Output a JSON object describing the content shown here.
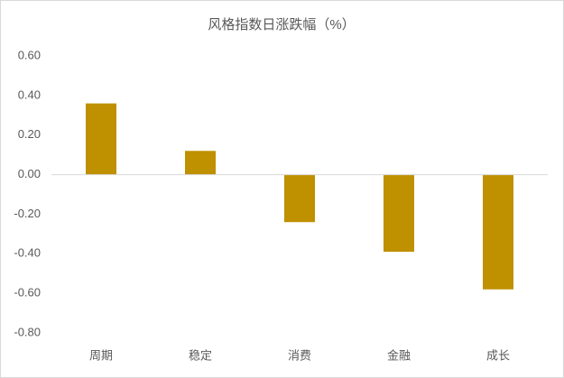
{
  "chart_data": {
    "type": "bar",
    "title": "风格指数日涨跌幅（%）",
    "categories": [
      "周期",
      "稳定",
      "消费",
      "金融",
      "成长"
    ],
    "values": [
      0.36,
      0.12,
      -0.24,
      -0.39,
      -0.58
    ],
    "color": "#bf9000",
    "ylim": [
      -0.8,
      0.6
    ],
    "yticks": [
      {
        "value": -0.8,
        "label": "-0.80"
      },
      {
        "value": -0.6,
        "label": "-0.60"
      },
      {
        "value": -0.4,
        "label": "-0.40"
      },
      {
        "value": -0.2,
        "label": "-0.20"
      },
      {
        "value": 0,
        "label": "0.00"
      },
      {
        "value": 0.2,
        "label": "0.20"
      },
      {
        "value": 0.4,
        "label": "0.40"
      },
      {
        "value": 0.6,
        "label": "0.60"
      }
    ],
    "grid": false
  }
}
